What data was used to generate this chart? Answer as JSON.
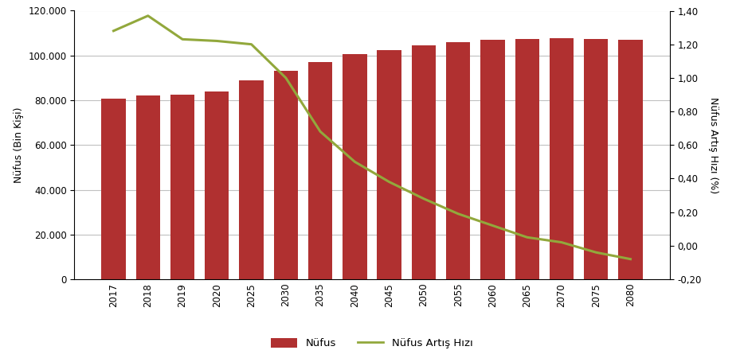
{
  "categories": [
    "2017",
    "2018",
    "2019",
    "2020",
    "2025",
    "2030",
    "2035",
    "2040",
    "2045",
    "2050",
    "2055",
    "2060",
    "2065",
    "2070",
    "2075",
    "2080"
  ],
  "population": [
    80810,
    82004,
    82650,
    84000,
    89000,
    93000,
    97000,
    100500,
    102500,
    104700,
    106000,
    107000,
    107500,
    107600,
    107500,
    107000
  ],
  "growth_rate": [
    1.28,
    1.37,
    1.23,
    1.22,
    1.2,
    1.0,
    0.68,
    0.5,
    0.38,
    0.28,
    0.19,
    0.12,
    0.05,
    0.02,
    -0.04,
    -0.08
  ],
  "bar_color": "#b03030",
  "line_color": "#92a83c",
  "ylabel_left": "Nüfus (Bin Kişi)",
  "ylabel_right": "Nüfus Artış Hızı (%)",
  "ylim_left": [
    0,
    120000
  ],
  "ylim_right": [
    -0.2,
    1.4
  ],
  "yticks_left": [
    0,
    20000,
    40000,
    60000,
    80000,
    100000,
    120000
  ],
  "yticks_right": [
    -0.2,
    0.0,
    0.2,
    0.4,
    0.6,
    0.8,
    1.0,
    1.2,
    1.4
  ],
  "legend_nufus": "Nüfus",
  "legend_artis": "Nüfus Artış Hızı",
  "background_color": "#ffffff",
  "plot_bg_color": "#ffffff",
  "grid_color": "#c0c0c0"
}
